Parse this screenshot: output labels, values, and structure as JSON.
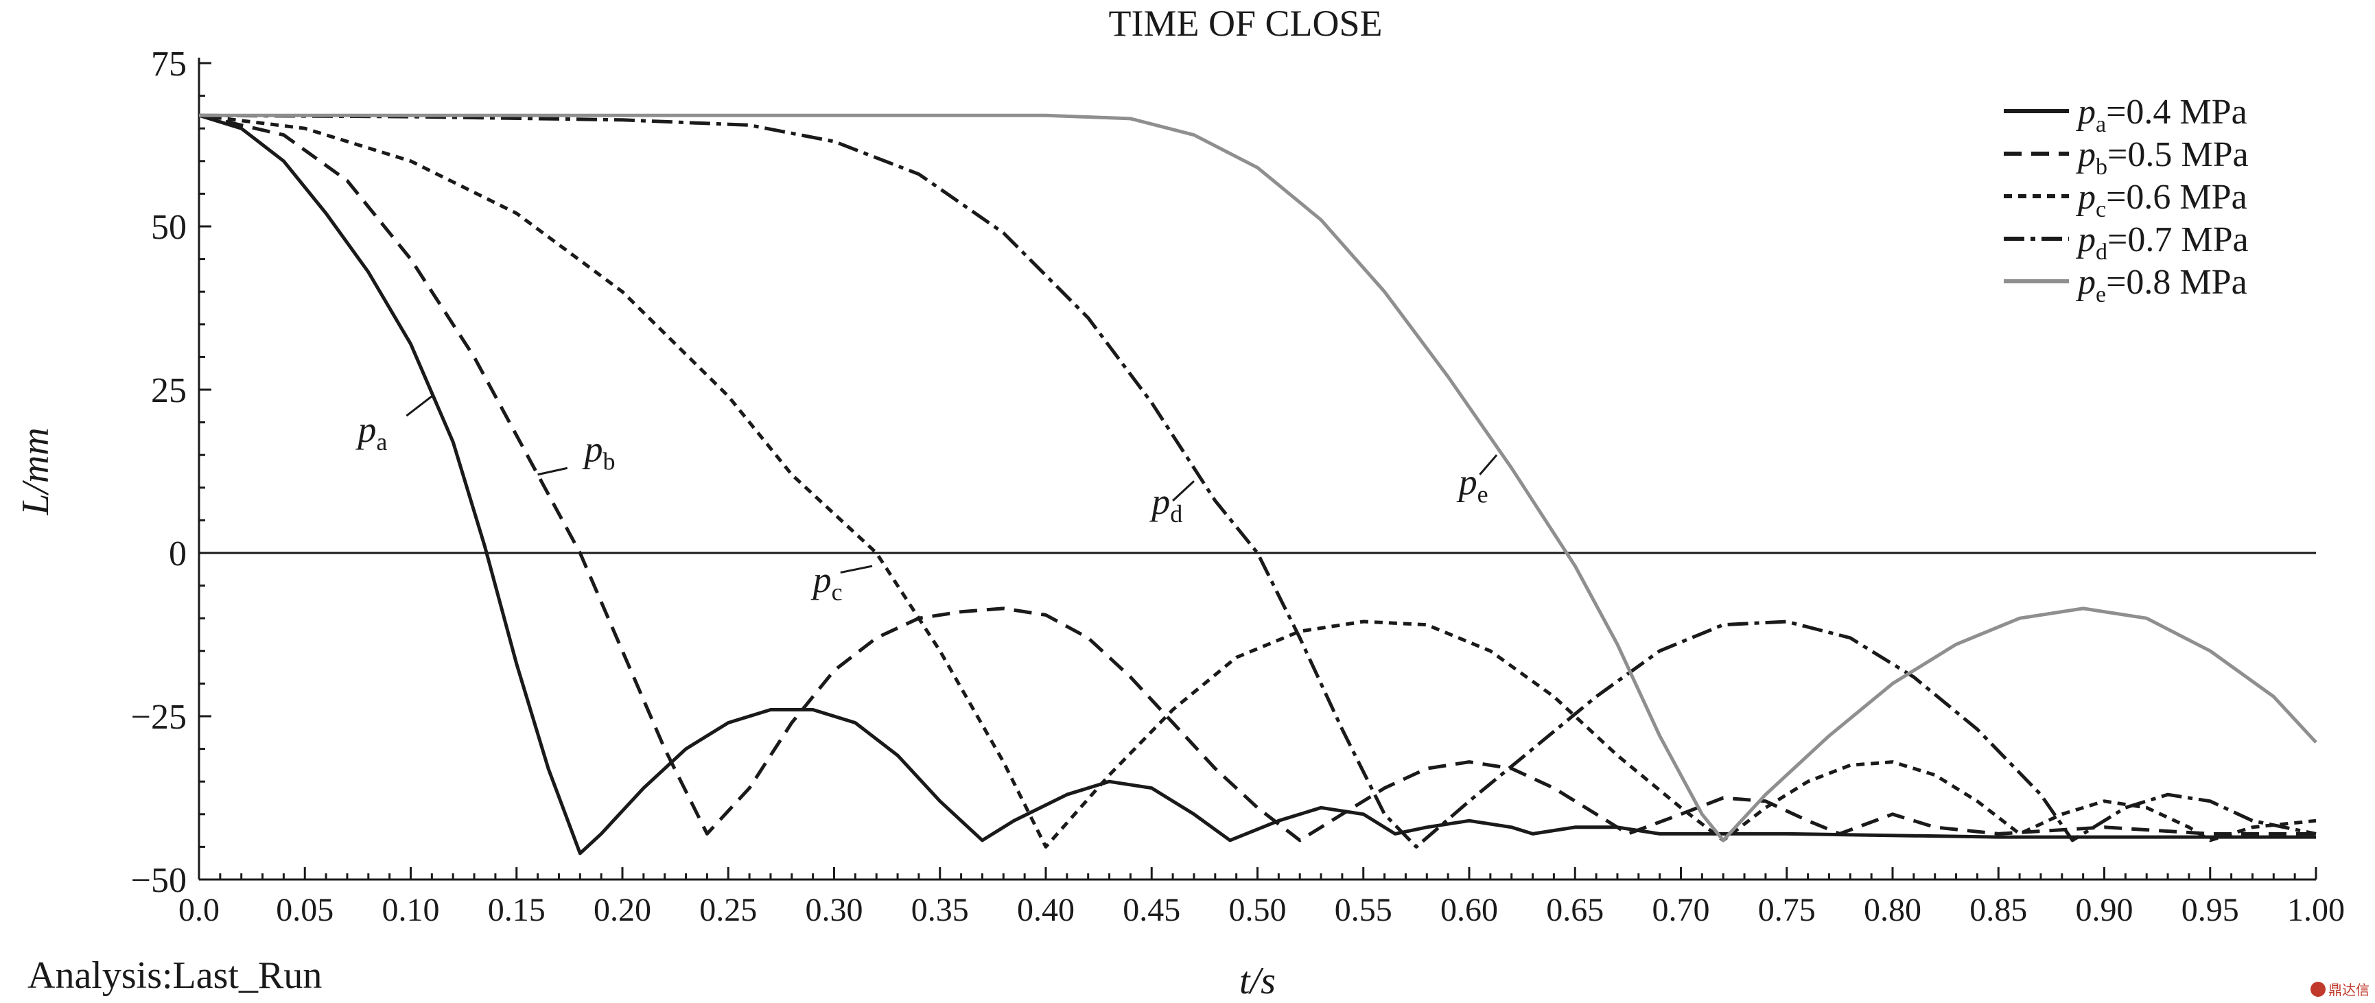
{
  "chart_data": {
    "type": "line",
    "title": "TIME OF CLOSE",
    "xlabel": "t/s",
    "ylabel": "L/mm",
    "xlim": [
      0,
      1.0
    ],
    "ylim": [
      -50,
      75
    ],
    "xticks": [
      "0.0",
      "0.05",
      "0.10",
      "0.15",
      "0.20",
      "0.25",
      "0.30",
      "0.35",
      "0.40",
      "0.45",
      "0.50",
      "0.55",
      "0.60",
      "0.65",
      "0.70",
      "0.75",
      "0.80",
      "0.85",
      "0.90",
      "0.95",
      "1.00"
    ],
    "yticks": [
      "75",
      "50",
      "25",
      "0",
      "−25",
      "−50"
    ],
    "grid": false,
    "legend_position": "top-right",
    "zero_line": true,
    "series": [
      {
        "name": "pa=0.4 MPa",
        "sym": "p",
        "sub": "a",
        "val": "=0.4 MPa",
        "color": "#1a1a1a",
        "dash": "",
        "points": [
          [
            0.0,
            67
          ],
          [
            0.02,
            65
          ],
          [
            0.04,
            60
          ],
          [
            0.06,
            52
          ],
          [
            0.08,
            43
          ],
          [
            0.1,
            32
          ],
          [
            0.12,
            17
          ],
          [
            0.135,
            1
          ],
          [
            0.15,
            -17
          ],
          [
            0.165,
            -33
          ],
          [
            0.18,
            -46
          ],
          [
            0.19,
            -43
          ],
          [
            0.21,
            -36
          ],
          [
            0.23,
            -30
          ],
          [
            0.25,
            -26
          ],
          [
            0.27,
            -24
          ],
          [
            0.29,
            -24
          ],
          [
            0.31,
            -26
          ],
          [
            0.33,
            -31
          ],
          [
            0.35,
            -38
          ],
          [
            0.37,
            -44
          ],
          [
            0.385,
            -41
          ],
          [
            0.41,
            -37
          ],
          [
            0.43,
            -35
          ],
          [
            0.45,
            -36
          ],
          [
            0.47,
            -40
          ],
          [
            0.487,
            -44
          ],
          [
            0.51,
            -41
          ],
          [
            0.53,
            -39
          ],
          [
            0.55,
            -40
          ],
          [
            0.565,
            -43
          ],
          [
            0.58,
            -42
          ],
          [
            0.6,
            -41
          ],
          [
            0.62,
            -42
          ],
          [
            0.63,
            -43
          ],
          [
            0.65,
            -42
          ],
          [
            0.67,
            -42
          ],
          [
            0.69,
            -43
          ],
          [
            0.7,
            -43
          ],
          [
            0.75,
            -43
          ],
          [
            0.85,
            -43.5
          ],
          [
            1.0,
            -43.5
          ]
        ]
      },
      {
        "name": "pb=0.5 MPa",
        "sym": "p",
        "sub": "b",
        "val": "=0.5 MPa",
        "color": "#1a1a1a",
        "dash": "26,14",
        "points": [
          [
            0.0,
            67
          ],
          [
            0.04,
            64
          ],
          [
            0.07,
            57
          ],
          [
            0.1,
            45
          ],
          [
            0.13,
            30
          ],
          [
            0.16,
            12
          ],
          [
            0.18,
            0
          ],
          [
            0.2,
            -15
          ],
          [
            0.22,
            -30
          ],
          [
            0.24,
            -43
          ],
          [
            0.26,
            -36
          ],
          [
            0.28,
            -26
          ],
          [
            0.3,
            -18
          ],
          [
            0.32,
            -13
          ],
          [
            0.34,
            -10
          ],
          [
            0.36,
            -9
          ],
          [
            0.38,
            -8.5
          ],
          [
            0.4,
            -9.5
          ],
          [
            0.42,
            -13
          ],
          [
            0.44,
            -19
          ],
          [
            0.46,
            -26
          ],
          [
            0.48,
            -33
          ],
          [
            0.5,
            -39
          ],
          [
            0.52,
            -44
          ],
          [
            0.54,
            -40
          ],
          [
            0.56,
            -36
          ],
          [
            0.58,
            -33
          ],
          [
            0.6,
            -32
          ],
          [
            0.62,
            -33
          ],
          [
            0.64,
            -36
          ],
          [
            0.66,
            -40
          ],
          [
            0.675,
            -43
          ],
          [
            0.7,
            -40
          ],
          [
            0.72,
            -37.5
          ],
          [
            0.74,
            -38
          ],
          [
            0.76,
            -41
          ],
          [
            0.775,
            -43
          ],
          [
            0.8,
            -40
          ],
          [
            0.82,
            -42
          ],
          [
            0.85,
            -43
          ],
          [
            0.9,
            -42
          ],
          [
            0.95,
            -43
          ],
          [
            1.0,
            -43
          ]
        ]
      },
      {
        "name": "pc=0.6 MPa",
        "sym": "p",
        "sub": "c",
        "val": "=0.6 MPa",
        "color": "#1a1a1a",
        "dash": "12,9",
        "points": [
          [
            0.0,
            67
          ],
          [
            0.05,
            65
          ],
          [
            0.1,
            60
          ],
          [
            0.15,
            52
          ],
          [
            0.2,
            40
          ],
          [
            0.25,
            24
          ],
          [
            0.28,
            12
          ],
          [
            0.32,
            0
          ],
          [
            0.35,
            -15
          ],
          [
            0.38,
            -32
          ],
          [
            0.4,
            -45
          ],
          [
            0.43,
            -34
          ],
          [
            0.46,
            -24
          ],
          [
            0.49,
            -16
          ],
          [
            0.52,
            -12
          ],
          [
            0.55,
            -10.5
          ],
          [
            0.58,
            -11
          ],
          [
            0.61,
            -15
          ],
          [
            0.64,
            -22
          ],
          [
            0.67,
            -31
          ],
          [
            0.7,
            -39
          ],
          [
            0.72,
            -44
          ],
          [
            0.74,
            -39
          ],
          [
            0.76,
            -35
          ],
          [
            0.78,
            -32.5
          ],
          [
            0.8,
            -32
          ],
          [
            0.82,
            -34
          ],
          [
            0.84,
            -38
          ],
          [
            0.86,
            -43
          ],
          [
            0.88,
            -40
          ],
          [
            0.9,
            -38
          ],
          [
            0.92,
            -39
          ],
          [
            0.94,
            -42
          ],
          [
            0.95,
            -44
          ],
          [
            0.97,
            -42
          ],
          [
            1.0,
            -41
          ]
        ]
      },
      {
        "name": "pd=0.7 MPa",
        "sym": "p",
        "sub": "d",
        "val": "=0.7 MPa",
        "color": "#1a1a1a",
        "dash": "30,9,7,9",
        "points": [
          [
            0.0,
            67
          ],
          [
            0.1,
            66.8
          ],
          [
            0.2,
            66.3
          ],
          [
            0.26,
            65.5
          ],
          [
            0.3,
            63
          ],
          [
            0.34,
            58
          ],
          [
            0.38,
            49
          ],
          [
            0.42,
            36
          ],
          [
            0.45,
            23
          ],
          [
            0.48,
            8
          ],
          [
            0.5,
            0
          ],
          [
            0.52,
            -13
          ],
          [
            0.54,
            -27
          ],
          [
            0.56,
            -40
          ],
          [
            0.575,
            -45
          ],
          [
            0.6,
            -38
          ],
          [
            0.63,
            -30
          ],
          [
            0.66,
            -22
          ],
          [
            0.69,
            -15
          ],
          [
            0.72,
            -11
          ],
          [
            0.75,
            -10.5
          ],
          [
            0.78,
            -13
          ],
          [
            0.81,
            -19
          ],
          [
            0.84,
            -27
          ],
          [
            0.87,
            -37
          ],
          [
            0.885,
            -44
          ],
          [
            0.91,
            -39
          ],
          [
            0.93,
            -37
          ],
          [
            0.95,
            -38
          ],
          [
            0.97,
            -41
          ],
          [
            1.0,
            -43
          ]
        ]
      },
      {
        "name": "pe=0.8 MPa",
        "sym": "p",
        "sub": "e",
        "val": "=0.8 MPa",
        "color": "#8f8f8f",
        "dash": "",
        "points": [
          [
            0.0,
            67
          ],
          [
            0.4,
            67
          ],
          [
            0.44,
            66.5
          ],
          [
            0.47,
            64
          ],
          [
            0.5,
            59
          ],
          [
            0.53,
            51
          ],
          [
            0.56,
            40
          ],
          [
            0.59,
            27
          ],
          [
            0.62,
            13
          ],
          [
            0.65,
            -2
          ],
          [
            0.67,
            -14
          ],
          [
            0.69,
            -28
          ],
          [
            0.71,
            -40
          ],
          [
            0.72,
            -44
          ],
          [
            0.74,
            -37
          ],
          [
            0.77,
            -28
          ],
          [
            0.8,
            -20
          ],
          [
            0.83,
            -14
          ],
          [
            0.86,
            -10
          ],
          [
            0.89,
            -8.5
          ],
          [
            0.92,
            -10
          ],
          [
            0.95,
            -15
          ],
          [
            0.98,
            -22
          ],
          [
            1.0,
            -29
          ]
        ]
      }
    ],
    "annotations": [
      {
        "sym": "p",
        "sub": "a",
        "tx": 0.075,
        "ty": 17,
        "lx1": 0.098,
        "ly1": 21,
        "lx2": 0.11,
        "ly2": 24
      },
      {
        "sym": "p",
        "sub": "b",
        "tx": 0.182,
        "ty": 14,
        "lx1": 0.174,
        "ly1": 13,
        "lx2": 0.16,
        "ly2": 12
      },
      {
        "sym": "p",
        "sub": "c",
        "tx": 0.29,
        "ty": -6,
        "lx1": 0.303,
        "ly1": -3,
        "lx2": 0.318,
        "ly2": -2
      },
      {
        "sym": "p",
        "sub": "d",
        "tx": 0.45,
        "ty": 6,
        "lx1": 0.46,
        "ly1": 8,
        "lx2": 0.47,
        "ly2": 11
      },
      {
        "sym": "p",
        "sub": "e",
        "tx": 0.595,
        "ty": 9,
        "lx1": 0.605,
        "ly1": 12,
        "lx2": 0.613,
        "ly2": 15
      }
    ],
    "footer_left": "Analysis:Last_Run"
  },
  "watermark": "鼎达信"
}
